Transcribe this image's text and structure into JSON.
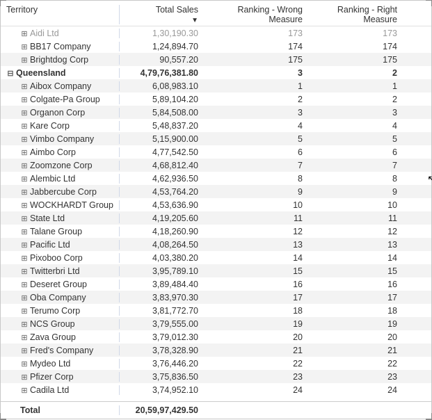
{
  "toolbar": {
    "drill_up": "↑",
    "drill_down": "↓",
    "expand": "⇊",
    "hierarchy": "⚻",
    "filter": "⋔",
    "focus": "⛶",
    "more": "⋯"
  },
  "columns": {
    "territory": "Territory",
    "total_sales": "Total Sales",
    "rank_wrong": "Ranking - Wrong Measure",
    "rank_right": "Ranking - Right Measure"
  },
  "rows": [
    {
      "indent": 1,
      "expand": "⊞",
      "partial": true,
      "name": "Aidi Ltd",
      "sales": "1,30,190.30",
      "wrong": "173",
      "right": "173"
    },
    {
      "indent": 1,
      "expand": "⊞",
      "name": "BB17 Company",
      "sales": "1,24,894.70",
      "wrong": "174",
      "right": "174"
    },
    {
      "indent": 1,
      "expand": "⊞",
      "alt": true,
      "name": "Brightdog Corp",
      "sales": "90,557.20",
      "wrong": "175",
      "right": "175"
    },
    {
      "indent": 0,
      "expand": "⊟",
      "bold": true,
      "name": "Queensland",
      "sales": "4,79,76,381.80",
      "wrong": "3",
      "right": "2"
    },
    {
      "indent": 1,
      "expand": "⊞",
      "alt": true,
      "name": "Aibox Company",
      "sales": "6,08,983.10",
      "wrong": "1",
      "right": "1"
    },
    {
      "indent": 1,
      "expand": "⊞",
      "name": "Colgate-Pa Group",
      "sales": "5,89,104.20",
      "wrong": "2",
      "right": "2"
    },
    {
      "indent": 1,
      "expand": "⊞",
      "alt": true,
      "name": "Organon Corp",
      "sales": "5,84,508.00",
      "wrong": "3",
      "right": "3"
    },
    {
      "indent": 1,
      "expand": "⊞",
      "name": "Kare Corp",
      "sales": "5,48,837.20",
      "wrong": "4",
      "right": "4"
    },
    {
      "indent": 1,
      "expand": "⊞",
      "alt": true,
      "name": "Vimbo Company",
      "sales": "5,15,900.00",
      "wrong": "5",
      "right": "5"
    },
    {
      "indent": 1,
      "expand": "⊞",
      "name": "Aimbo Corp",
      "sales": "4,77,542.50",
      "wrong": "6",
      "right": "6"
    },
    {
      "indent": 1,
      "expand": "⊞",
      "alt": true,
      "name": "Zoomzone Corp",
      "sales": "4,68,812.40",
      "wrong": "7",
      "right": "7"
    },
    {
      "indent": 1,
      "expand": "⊞",
      "name": "Alembic Ltd",
      "sales": "4,62,936.50",
      "wrong": "8",
      "right": "8"
    },
    {
      "indent": 1,
      "expand": "⊞",
      "alt": true,
      "name": "Jabbercube Corp",
      "sales": "4,53,764.20",
      "wrong": "9",
      "right": "9"
    },
    {
      "indent": 1,
      "expand": "⊞",
      "name": "WOCKHARDT Group",
      "sales": "4,53,636.90",
      "wrong": "10",
      "right": "10"
    },
    {
      "indent": 1,
      "expand": "⊞",
      "alt": true,
      "name": "State Ltd",
      "sales": "4,19,205.60",
      "wrong": "11",
      "right": "11"
    },
    {
      "indent": 1,
      "expand": "⊞",
      "name": "Talane Group",
      "sales": "4,18,260.90",
      "wrong": "12",
      "right": "12"
    },
    {
      "indent": 1,
      "expand": "⊞",
      "alt": true,
      "name": "Pacific Ltd",
      "sales": "4,08,264.50",
      "wrong": "13",
      "right": "13"
    },
    {
      "indent": 1,
      "expand": "⊞",
      "name": "Pixoboo Corp",
      "sales": "4,03,380.20",
      "wrong": "14",
      "right": "14"
    },
    {
      "indent": 1,
      "expand": "⊞",
      "alt": true,
      "name": "Twitterbri Ltd",
      "sales": "3,95,789.10",
      "wrong": "15",
      "right": "15"
    },
    {
      "indent": 1,
      "expand": "⊞",
      "name": "Deseret Group",
      "sales": "3,89,484.40",
      "wrong": "16",
      "right": "16"
    },
    {
      "indent": 1,
      "expand": "⊞",
      "alt": true,
      "name": "Oba Company",
      "sales": "3,83,970.30",
      "wrong": "17",
      "right": "17"
    },
    {
      "indent": 1,
      "expand": "⊞",
      "name": "Terumo Corp",
      "sales": "3,81,772.70",
      "wrong": "18",
      "right": "18"
    },
    {
      "indent": 1,
      "expand": "⊞",
      "alt": true,
      "name": "NCS Group",
      "sales": "3,79,555.00",
      "wrong": "19",
      "right": "19"
    },
    {
      "indent": 1,
      "expand": "⊞",
      "name": "Zava Group",
      "sales": "3,79,012.30",
      "wrong": "20",
      "right": "20"
    },
    {
      "indent": 1,
      "expand": "⊞",
      "alt": true,
      "name": "Fred's Company",
      "sales": "3,78,328.90",
      "wrong": "21",
      "right": "21"
    },
    {
      "indent": 1,
      "expand": "⊞",
      "name": "Mydeo Ltd",
      "sales": "3,76,446.20",
      "wrong": "22",
      "right": "22"
    },
    {
      "indent": 1,
      "expand": "⊞",
      "alt": true,
      "name": "Pfizer Corp",
      "sales": "3,75,836.50",
      "wrong": "23",
      "right": "23"
    },
    {
      "indent": 1,
      "expand": "⊞",
      "name": "Cadila Ltd",
      "sales": "3,74,952.10",
      "wrong": "24",
      "right": "24"
    }
  ],
  "footer": {
    "label": "Total",
    "sales": "20,59,97,429.50"
  },
  "colors": {
    "alt_row": "#f3f3f3",
    "sep": "#d0d8e8",
    "border": "#c8c8c8"
  }
}
